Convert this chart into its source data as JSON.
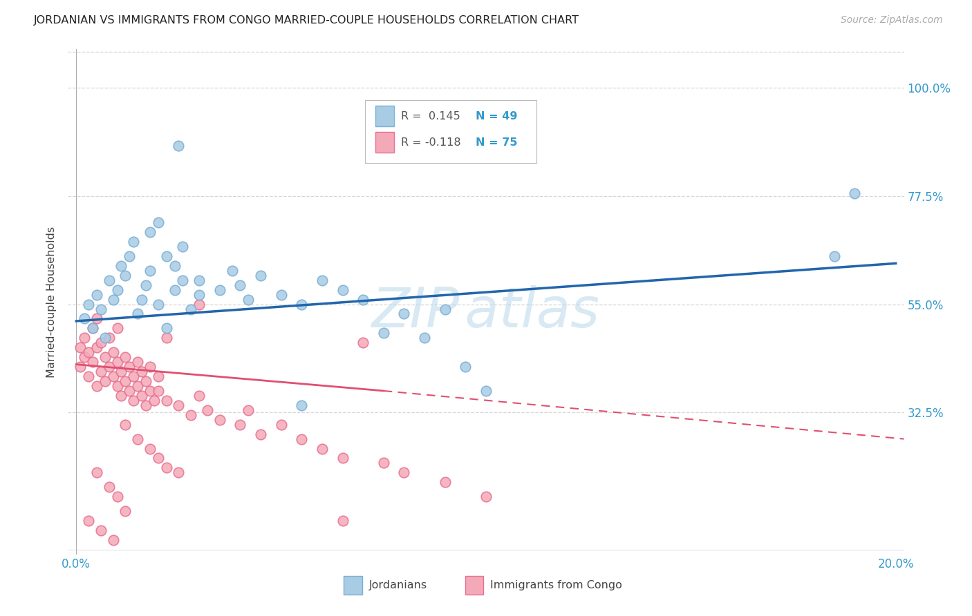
{
  "title": "JORDANIAN VS IMMIGRANTS FROM CONGO MARRIED-COUPLE HOUSEHOLDS CORRELATION CHART",
  "source": "Source: ZipAtlas.com",
  "ylabel": "Married-couple Households",
  "legend_blue_r": "R =  0.145",
  "legend_blue_n": "N = 49",
  "legend_pink_r": "R = -0.118",
  "legend_pink_n": "N = 75",
  "legend_label_blue": "Jordanians",
  "legend_label_pink": "Immigrants from Congo",
  "blue_color": "#a8cce4",
  "blue_edge_color": "#7bafd4",
  "pink_color": "#f4a9b8",
  "pink_edge_color": "#e87090",
  "line_blue_color": "#2166ac",
  "line_pink_solid_color": "#e05070",
  "line_pink_dash_color": "#f0a0b0",
  "watermark_color": "#b8d8ec",
  "grid_color": "#cccccc",
  "background_color": "#ffffff",
  "xlim": [
    -0.002,
    0.202
  ],
  "ylim": [
    0.03,
    1.08
  ],
  "yticks": [
    0.325,
    0.55,
    0.775,
    1.0
  ],
  "ytick_labels": [
    "32.5%",
    "55.0%",
    "77.5%",
    "100.0%"
  ],
  "xticks": [
    0.0,
    0.05,
    0.1,
    0.15,
    0.2
  ],
  "xtick_labels_left": "0.0%",
  "xtick_labels_right": "20.0%",
  "blue_line_x0": 0.0,
  "blue_line_y0": 0.515,
  "blue_line_x1": 0.2,
  "blue_line_y1": 0.635,
  "pink_line_x0": 0.0,
  "pink_line_y0": 0.425,
  "pink_line_x1_solid": 0.075,
  "pink_line_y1_solid": 0.37,
  "pink_line_x1_dash": 0.202,
  "pink_line_y1_dash": 0.27
}
